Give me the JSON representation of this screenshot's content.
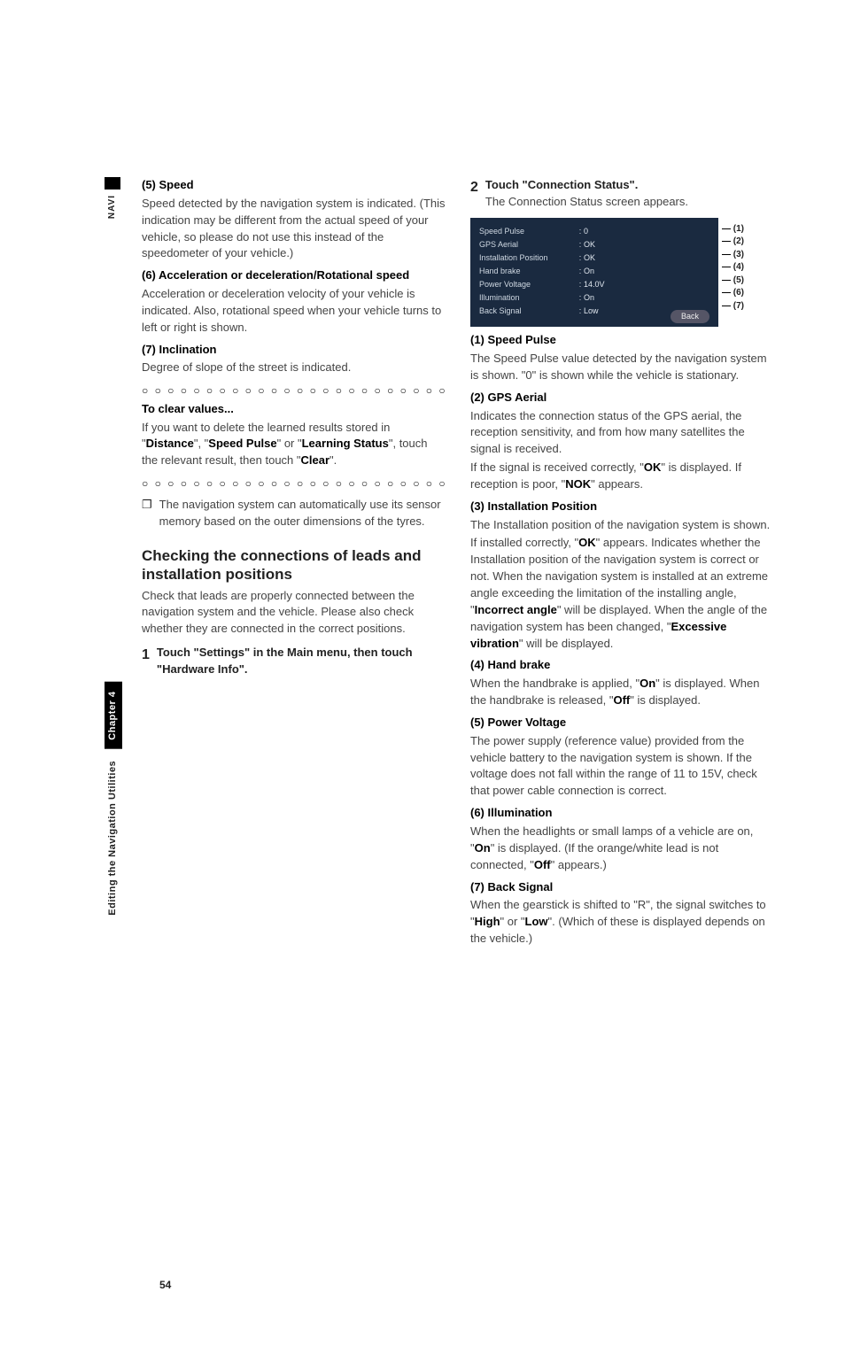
{
  "navi_label": "NAVI",
  "side_label": "Editing the Navigation Utilities",
  "chapter_label": "Chapter 4",
  "page_number": "54",
  "left": {
    "h5": "(5) Speed",
    "p5": "Speed detected by the navigation system is indicated. (This indication may be different from the actual speed of your vehicle, so please do not use this instead of the speedometer of your vehicle.)",
    "h6": "(6) Acceleration or deceleration/Rotational speed",
    "p6": "Acceleration or deceleration velocity of your vehicle is indicated. Also, rotational speed when your vehicle turns to left or right is shown.",
    "h7": "(7) Inclination",
    "p7": "Degree of slope of the street is indicated.",
    "clear_h": "To clear values...",
    "clear_p1": "If you want to delete the learned results stored in \"",
    "clear_p1_b1": "Distance",
    "clear_p1_m1": "\", \"",
    "clear_p1_b2": "Speed Pulse",
    "clear_p1_m2": "\" or \"",
    "clear_p1_b3": "Learning Status",
    "clear_p1_m3": "\", touch the relevant result, then touch \"",
    "clear_p1_b4": "Clear",
    "clear_p1_end": "\".",
    "note": "The navigation system can automatically use its sensor memory based on the outer dimensions of the tyres.",
    "section_title": "Checking the connections of leads and installation positions",
    "sec_p": "Check that leads are properly connected between the navigation system and the vehicle. Please also check whether they are connected in the correct positions.",
    "step1_num": "1",
    "step1_txt": "Touch \"Settings\" in the Main menu, then touch \"Hardware Info\"."
  },
  "right": {
    "step2_num": "2",
    "step2_lead": "Touch \"Connection Status\".",
    "step2_sub": "The Connection Status screen appears.",
    "fig_rows": [
      {
        "k": "Speed Pulse",
        "v": "0",
        "c": "(1)"
      },
      {
        "k": "GPS Aerial",
        "v": "OK",
        "c": "(2)"
      },
      {
        "k": "Installation Position",
        "v": "OK",
        "c": "(3)"
      },
      {
        "k": "Hand brake",
        "v": "On",
        "c": "(4)"
      },
      {
        "k": "Power Voltage",
        "v": "14.0V",
        "c": "(5)"
      },
      {
        "k": "Illumination",
        "v": "On",
        "c": "(6)"
      },
      {
        "k": "Back Signal",
        "v": "Low",
        "c": "(7)"
      }
    ],
    "fig_back": "Back",
    "h1": "(1) Speed Pulse",
    "p1": "The Speed Pulse value detected by the navigation system is shown. \"0\" is shown while the vehicle is stationary.",
    "h2": "(2) GPS Aerial",
    "p2a": "Indicates the connection status of the GPS aerial, the reception sensitivity, and from how many satellites the signal is received.",
    "p2b_1": "If the signal is received correctly, \"",
    "p2b_b1": "OK",
    "p2b_2": "\" is displayed. If reception is poor, \"",
    "p2b_b2": "NOK",
    "p2b_3": "\" appears.",
    "h3": "(3) Installation Position",
    "p3a": "The Installation position of the navigation system is shown.",
    "p3b_1": "If installed correctly, \"",
    "p3b_b1": "OK",
    "p3b_2": "\" appears. Indicates whether the Installation position of the navigation system is correct or not. When the navigation system is installed at an extreme angle exceeding the limitation of the installing angle, \"",
    "p3b_b2": "Incorrect angle",
    "p3b_3": "\" will be displayed. When the angle of the navigation system has been changed, \"",
    "p3b_b3": "Excessive vibration",
    "p3b_4": "\" will be displayed.",
    "h4": "(4) Hand brake",
    "p4_1": "When the handbrake is applied, \"",
    "p4_b1": "On",
    "p4_2": "\" is displayed. When the handbrake is released, \"",
    "p4_b2": "Off",
    "p4_3": "\" is displayed.",
    "h5": "(5) Power Voltage",
    "p5": "The power supply (reference value) provided from the vehicle battery to the navigation system is shown. If the voltage does not fall within the range of 11 to 15V, check that power cable connection is correct.",
    "h6": "(6) Illumination",
    "p6_1": "When the headlights or small lamps of a vehicle are on, \"",
    "p6_b1": "On",
    "p6_2": "\" is displayed. (If the orange/white lead is not connected, \"",
    "p6_b2": "Off",
    "p6_3": "\" appears.)",
    "h7": "(7) Back Signal",
    "p7_1": "When the gearstick is shifted to \"R\", the signal switches to \"",
    "p7_b1": "High",
    "p7_2": "\" or \"",
    "p7_b2": "Low",
    "p7_3": "\". (Which of these is displayed depends on the vehicle.)"
  }
}
